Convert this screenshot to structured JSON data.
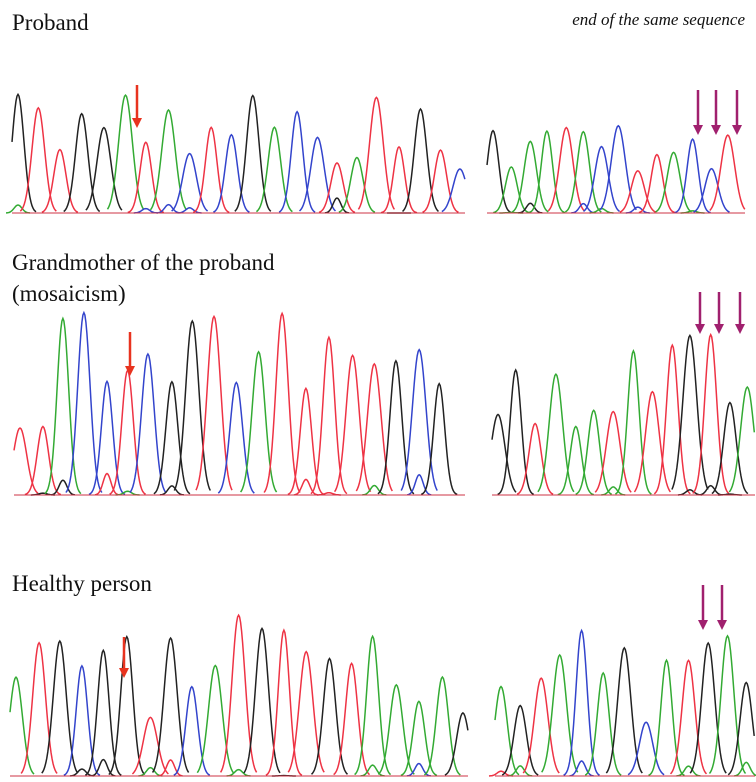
{
  "panels": [
    {
      "title": "Proband",
      "note": "end of the same sequence"
    },
    {
      "title": "Grandmother of the proband",
      "subtitle": "(mosaicism)"
    },
    {
      "title": "Healthy person"
    }
  ]
}
